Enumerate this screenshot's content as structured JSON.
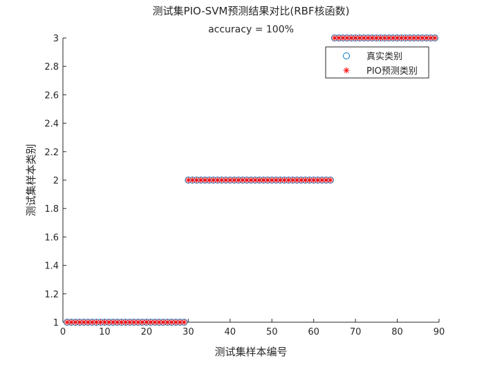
{
  "chart_data": {
    "type": "scatter",
    "title": "测试集PIO-SVM预测结果对比(RBF核函数)",
    "subtitle": "accuracy = 100%",
    "xlabel": "测试集样本编号",
    "ylabel": "测试集样本类别",
    "xlim": [
      0,
      90
    ],
    "ylim": [
      1,
      3
    ],
    "xticks": [
      0,
      10,
      20,
      30,
      40,
      50,
      60,
      70,
      80,
      90
    ],
    "yticks": [
      1,
      1.2,
      1.4,
      1.6,
      1.8,
      2,
      2.2,
      2.4,
      2.6,
      2.8,
      3
    ],
    "ytick_labels": [
      "1",
      "1.2",
      "1.4",
      "1.6",
      "1.8",
      "2",
      "2.2",
      "2.4",
      "2.6",
      "2.8",
      "3"
    ],
    "grid": false,
    "legend_position": "top-right",
    "class_segments": [
      {
        "from": 1,
        "to": 29,
        "class": 1
      },
      {
        "from": 30,
        "to": 64,
        "class": 2
      },
      {
        "from": 65,
        "to": 89,
        "class": 3
      }
    ],
    "series": [
      {
        "name": "真实类别",
        "marker": "circle",
        "color": "#0072BD"
      },
      {
        "name": "PIO预测类别",
        "marker": "asterisk",
        "color": "#FF0000"
      }
    ]
  }
}
